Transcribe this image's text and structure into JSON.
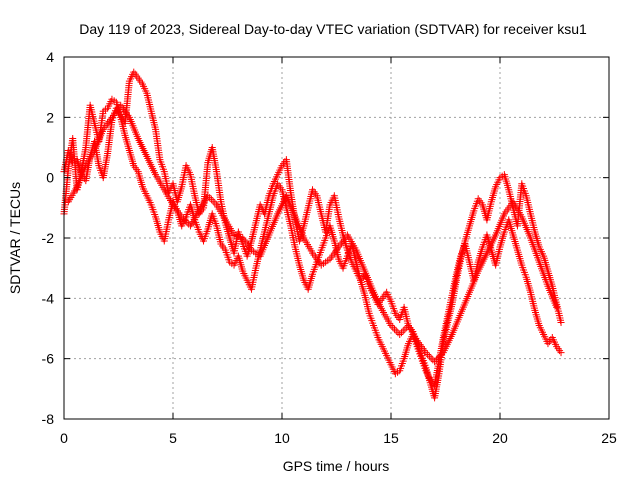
{
  "chart_data": {
    "type": "scatter",
    "title": "Day 119 of 2023, Sidereal Day-to-day VTEC variation (SDTVAR) for receiver ksu1",
    "xlabel": "GPS time / hours",
    "ylabel": "SDTVAR / TECUs",
    "xlim": [
      0,
      25
    ],
    "ylim": [
      -8,
      4
    ],
    "xticks": [
      "0",
      "5",
      "10",
      "15",
      "20",
      "25"
    ],
    "yticks": [
      "-8",
      "-6",
      "-4",
      "-2",
      "0",
      "2",
      "4"
    ],
    "xtick_values": [
      0,
      5,
      10,
      15,
      20,
      25
    ],
    "ytick_values": [
      -8,
      -6,
      -4,
      -2,
      0,
      2,
      4
    ],
    "grid": true,
    "marker": "plus",
    "color": "#ff0000",
    "series": [
      {
        "x": [
          0.0,
          0.2,
          0.4,
          0.6,
          0.8,
          1.0,
          1.2,
          1.4,
          1.6,
          1.8,
          2.0,
          2.2,
          2.4,
          2.6,
          2.8,
          3.0,
          3.2,
          3.4,
          3.6,
          3.8,
          4.0,
          4.2,
          4.4,
          4.6,
          4.8,
          5.0,
          5.2,
          5.4,
          5.6,
          5.8,
          6.0,
          6.2,
          6.4,
          6.6,
          6.8,
          7.0,
          7.2,
          7.4,
          7.6,
          7.8,
          8.0,
          8.2,
          8.4,
          8.6,
          8.8,
          9.0,
          9.2,
          9.4,
          9.6,
          9.8,
          10.0,
          10.2,
          10.4,
          10.6,
          10.8,
          11.0,
          11.2,
          11.4,
          11.6,
          11.8,
          12.0,
          12.2,
          12.4,
          12.6,
          12.8,
          13.0,
          13.2,
          13.4,
          13.6,
          13.8,
          14.0,
          14.2,
          14.4,
          14.6,
          14.8,
          15.0,
          15.2,
          15.4,
          15.6,
          15.8,
          16.0,
          16.2,
          16.4,
          16.6,
          16.8,
          17.0,
          17.2,
          17.4,
          17.6,
          17.8,
          18.0,
          18.2,
          18.4,
          18.6,
          18.8,
          19.0,
          19.2,
          19.4,
          19.6,
          19.8,
          20.0,
          20.2,
          20.4,
          20.6,
          20.8,
          21.0,
          21.2,
          21.4,
          21.6,
          21.8,
          22.0,
          22.2,
          22.4,
          22.6,
          22.8
        ],
        "y": [
          -1.2,
          0.3,
          1.3,
          -0.4,
          0.2,
          1.0,
          2.4,
          1.8,
          1.2,
          2.2,
          2.3,
          2.6,
          2.5,
          2.1,
          1.8,
          3.2,
          3.5,
          3.3,
          3.1,
          2.8,
          2.2,
          1.6,
          0.6,
          0.2,
          -0.5,
          -0.2,
          -0.8,
          -0.3,
          0.4,
          0.1,
          -0.6,
          -1.2,
          -1.0,
          0.5,
          1.0,
          0.2,
          -0.8,
          -1.5,
          -2.0,
          -2.5,
          -1.8,
          -2.2,
          -2.6,
          -2.1,
          -1.5,
          -0.9,
          -1.2,
          -0.6,
          -0.2,
          0.1,
          0.4,
          0.6,
          -0.5,
          -1.4,
          -2.1,
          -1.6,
          -1.0,
          -0.4,
          -0.6,
          -1.2,
          -1.8,
          -0.9,
          -0.6,
          -1.3,
          -1.9,
          -2.4,
          -2.8,
          -3.1,
          -3.4,
          -3.2,
          -3.6,
          -3.9,
          -4.2,
          -4.0,
          -3.8,
          -4.1,
          -4.5,
          -4.7,
          -4.3,
          -4.9,
          -5.1,
          -5.5,
          -5.9,
          -6.3,
          -6.8,
          -7.3,
          -6.5,
          -5.5,
          -4.8,
          -4.2,
          -3.4,
          -2.7,
          -2.1,
          -1.6,
          -1.1,
          -0.7,
          -0.9,
          -1.4,
          -0.8,
          -0.3,
          0.0,
          0.1,
          -0.4,
          -1.0,
          -1.6,
          -0.2,
          -0.6,
          -1.2,
          -1.8,
          -2.3,
          -2.6,
          -3.1,
          -3.6,
          -4.2,
          -4.8
        ]
      },
      {
        "x": [
          0.0,
          0.2,
          0.4,
          0.6,
          0.8,
          1.0,
          1.2,
          1.4,
          1.6,
          1.8,
          2.0,
          2.2,
          2.4,
          2.6,
          2.8,
          3.0,
          3.2,
          3.4,
          3.6,
          3.8,
          4.0,
          4.2,
          4.4,
          4.6,
          4.8,
          5.0,
          5.2,
          5.4,
          5.6,
          5.8,
          6.0,
          6.2,
          6.4,
          6.6,
          6.8,
          7.0,
          7.2,
          7.4,
          7.6,
          7.8,
          8.0,
          8.2,
          8.4,
          8.6,
          8.8,
          9.0,
          9.2,
          9.4,
          9.6,
          9.8,
          10.0,
          10.2,
          10.4,
          10.6,
          10.8,
          11.0,
          11.2,
          11.4,
          11.6,
          11.8,
          12.0,
          12.2,
          12.4,
          12.6,
          12.8,
          13.0,
          13.2,
          13.4,
          13.6,
          13.8,
          14.0,
          14.2,
          14.4,
          14.6,
          14.8,
          15.0,
          15.2,
          15.4,
          15.6,
          15.8,
          16.0,
          16.2,
          16.4,
          16.6,
          16.8,
          17.0,
          17.2,
          17.4,
          17.6,
          17.8,
          18.0,
          18.2,
          18.4,
          18.6,
          18.8,
          19.0,
          19.2,
          19.4,
          19.6,
          19.8,
          20.0,
          20.2,
          20.4,
          20.6,
          20.8,
          21.0,
          21.2,
          21.4,
          21.6,
          21.8,
          22.0,
          22.2,
          22.4,
          22.6,
          22.8
        ],
        "y": [
          0.2,
          0.9,
          0.5,
          0.6,
          0.1,
          -0.1,
          0.7,
          1.2,
          0.4,
          0.0,
          0.8,
          1.9,
          2.3,
          2.0,
          1.4,
          0.9,
          0.4,
          0.2,
          -0.3,
          -0.6,
          -0.9,
          -1.3,
          -1.8,
          -2.1,
          -1.4,
          -0.8,
          -1.1,
          -1.6,
          -1.3,
          -0.9,
          -1.4,
          -1.8,
          -2.1,
          -1.7,
          -1.2,
          -1.6,
          -2.2,
          -2.4,
          -2.8,
          -2.9,
          -2.6,
          -3.1,
          -3.4,
          -3.7,
          -3.0,
          -2.4,
          -1.8,
          -1.2,
          -0.6,
          -0.2,
          -0.4,
          -1.0,
          -1.6,
          -2.3,
          -2.9,
          -3.4,
          -3.7,
          -3.2,
          -2.8,
          -2.4,
          -2.0,
          -1.6,
          -2.1,
          -2.7,
          -3.0,
          -2.6,
          -2.2,
          -2.8,
          -3.4,
          -3.9,
          -4.5,
          -4.9,
          -5.3,
          -5.6,
          -5.9,
          -6.2,
          -6.5,
          -6.4,
          -6.0,
          -5.5,
          -5.2,
          -5.6,
          -6.0,
          -6.4,
          -6.7,
          -6.9,
          -6.1,
          -5.3,
          -4.6,
          -3.9,
          -3.2,
          -2.6,
          -2.2,
          -2.8,
          -3.4,
          -2.8,
          -2.3,
          -1.9,
          -2.4,
          -2.9,
          -2.3,
          -1.8,
          -1.4,
          -1.9,
          -2.4,
          -2.9,
          -3.3,
          -3.8,
          -4.4,
          -4.9,
          -5.2,
          -5.5,
          -5.3,
          -5.6,
          -5.8
        ]
      },
      {
        "x": [
          0.2,
          0.6,
          1.0,
          1.4,
          1.8,
          2.2,
          2.6,
          3.0,
          3.4,
          3.8,
          4.2,
          4.6,
          5.0,
          5.4,
          5.8,
          6.2,
          6.6,
          7.0,
          7.4,
          7.8,
          8.2,
          8.6,
          9.0,
          9.4,
          9.8,
          10.2,
          10.6,
          11.0,
          11.4,
          11.8,
          12.2,
          12.6,
          13.0,
          13.4,
          13.8,
          14.2,
          14.6,
          15.0,
          15.4,
          15.8,
          16.2,
          16.6,
          17.0,
          17.4,
          17.8,
          18.2,
          18.6,
          19.0,
          19.4,
          19.8,
          20.2,
          20.6,
          21.0,
          21.4,
          21.8,
          22.2,
          22.6
        ],
        "y": [
          -0.8,
          -0.3,
          0.4,
          0.9,
          1.6,
          2.0,
          2.4,
          2.0,
          1.3,
          0.7,
          0.1,
          -0.4,
          -0.9,
          -1.3,
          -1.6,
          -1.1,
          -0.6,
          -0.9,
          -1.4,
          -1.9,
          -2.0,
          -2.4,
          -2.6,
          -1.9,
          -1.2,
          -0.6,
          -1.3,
          -2.0,
          -2.5,
          -2.9,
          -2.7,
          -2.3,
          -1.9,
          -2.4,
          -3.1,
          -3.8,
          -4.4,
          -4.9,
          -5.2,
          -4.9,
          -5.4,
          -5.8,
          -6.1,
          -5.8,
          -5.2,
          -4.5,
          -3.8,
          -3.1,
          -2.5,
          -1.9,
          -1.2,
          -0.8,
          -1.3,
          -2.0,
          -2.8,
          -3.6,
          -4.3
        ]
      }
    ]
  }
}
